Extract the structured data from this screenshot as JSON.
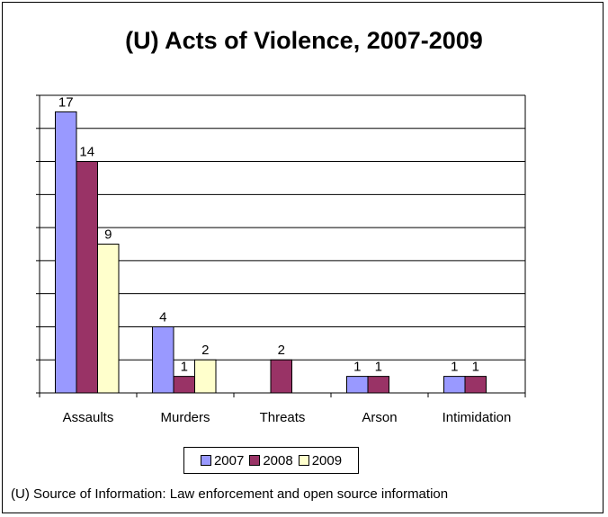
{
  "chart_data": {
    "type": "bar",
    "title": "(U) Acts of Violence, 2007-2009",
    "categories": [
      "Assaults",
      "Murders",
      "Threats",
      "Arson",
      "Intimidation"
    ],
    "series": [
      {
        "name": "2007",
        "color": "#9999ff",
        "values": [
          17,
          4,
          null,
          1,
          1
        ]
      },
      {
        "name": "2008",
        "color": "#993366",
        "values": [
          14,
          1,
          2,
          1,
          1
        ]
      },
      {
        "name": "2009",
        "color": "#ffffcc",
        "values": [
          9,
          2,
          null,
          null,
          null
        ]
      }
    ],
    "ylim": [
      0,
      18
    ],
    "grid": true,
    "legend": "bottom"
  },
  "source_note": "(U) Source of Information: Law enforcement and open source information"
}
